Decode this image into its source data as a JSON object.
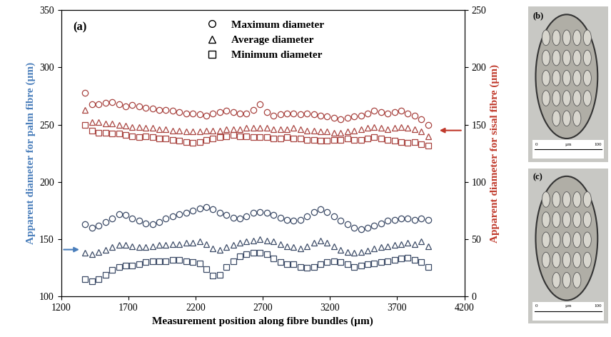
{
  "chart_data": {
    "type": "scatter",
    "panel_label": "(a)",
    "x_label": "Measurement position along fibre bundles (µm)",
    "y_label": "Apparent diameter for palm fibre (µm)",
    "y2_label": "Apparent diameter for sisal fibre (µm)",
    "xlim": [
      1200,
      4200
    ],
    "xticks": [
      1200,
      1700,
      2200,
      2700,
      3200,
      3700,
      4200
    ],
    "ylim": [
      100,
      350
    ],
    "yticks": [
      100,
      150,
      200,
      250,
      300,
      350
    ],
    "y2lim": [
      0,
      250
    ],
    "y2ticks": [
      0,
      50,
      100,
      150,
      200,
      250
    ],
    "legend": "upper center",
    "grid": false,
    "x": [
      1380,
      1430,
      1480,
      1530,
      1580,
      1630,
      1680,
      1730,
      1780,
      1830,
      1880,
      1930,
      1980,
      2030,
      2080,
      2130,
      2180,
      2230,
      2280,
      2330,
      2380,
      2430,
      2480,
      2530,
      2580,
      2630,
      2680,
      2730,
      2780,
      2830,
      2880,
      2930,
      2980,
      3030,
      3080,
      3130,
      3180,
      3230,
      3280,
      3330,
      3380,
      3430,
      3480,
      3530,
      3580,
      3630,
      3680,
      3730,
      3780,
      3830,
      3880,
      3930
    ],
    "series": [
      {
        "name": "Maximum diameter",
        "color": "#3b4a66",
        "marker": "circle",
        "axis": "y",
        "values": [
          163,
          160,
          162,
          165,
          168,
          172,
          171,
          168,
          166,
          164,
          163,
          165,
          168,
          170,
          172,
          173,
          175,
          177,
          178,
          176,
          173,
          171,
          169,
          168,
          170,
          173,
          174,
          173,
          171,
          169,
          167,
          166,
          167,
          170,
          174,
          176,
          174,
          170,
          166,
          163,
          160,
          159,
          160,
          162,
          164,
          166,
          167,
          168,
          168,
          167,
          168,
          167
        ]
      },
      {
        "name": "Average diameter",
        "color": "#3b4a66",
        "marker": "triangle",
        "axis": "y",
        "values": [
          138,
          137,
          139,
          141,
          143,
          145,
          145,
          144,
          143,
          143,
          144,
          145,
          145,
          146,
          146,
          147,
          147,
          148,
          146,
          142,
          141,
          143,
          145,
          147,
          148,
          149,
          150,
          149,
          148,
          146,
          144,
          143,
          142,
          144,
          147,
          149,
          147,
          144,
          141,
          139,
          138,
          139,
          140,
          142,
          143,
          144,
          145,
          146,
          147,
          146,
          148,
          144
        ]
      },
      {
        "name": "Minimum diameter",
        "color": "#3b4a66",
        "marker": "square",
        "axis": "y",
        "values": [
          115,
          113,
          115,
          119,
          123,
          126,
          127,
          127,
          128,
          130,
          131,
          131,
          131,
          132,
          132,
          131,
          130,
          129,
          124,
          118,
          119,
          126,
          131,
          135,
          137,
          138,
          138,
          137,
          133,
          130,
          128,
          128,
          126,
          125,
          126,
          128,
          130,
          131,
          130,
          128,
          126,
          127,
          128,
          129,
          130,
          131,
          132,
          133,
          134,
          132,
          130,
          126
        ]
      },
      {
        "name": "Maximum diameter",
        "color": "#a8433f",
        "marker": "circle",
        "axis": "y2",
        "values": [
          178,
          168,
          168,
          169,
          170,
          168,
          166,
          167,
          166,
          165,
          164,
          163,
          163,
          162,
          161,
          160,
          160,
          159,
          158,
          160,
          161,
          162,
          161,
          160,
          160,
          163,
          168,
          161,
          158,
          159,
          160,
          160,
          159,
          160,
          159,
          158,
          157,
          156,
          155,
          156,
          157,
          158,
          160,
          162,
          161,
          160,
          161,
          162,
          160,
          158,
          155,
          150
        ]
      },
      {
        "name": "Average diameter",
        "color": "#a8433f",
        "marker": "triangle",
        "axis": "y2",
        "values": [
          163,
          152,
          152,
          151,
          151,
          150,
          149,
          148,
          148,
          147,
          147,
          146,
          146,
          145,
          145,
          144,
          144,
          144,
          145,
          145,
          145,
          146,
          146,
          146,
          147,
          147,
          147,
          147,
          146,
          146,
          146,
          147,
          146,
          145,
          145,
          144,
          144,
          143,
          143,
          144,
          145,
          146,
          147,
          148,
          147,
          146,
          147,
          148,
          147,
          146,
          144,
          140
        ]
      },
      {
        "name": "Minimum diameter",
        "color": "#a8433f",
        "marker": "square",
        "axis": "y2",
        "values": [
          150,
          145,
          143,
          143,
          142,
          142,
          141,
          140,
          139,
          140,
          139,
          138,
          138,
          137,
          136,
          135,
          134,
          135,
          137,
          138,
          139,
          140,
          141,
          140,
          140,
          139,
          139,
          139,
          138,
          138,
          139,
          138,
          138,
          137,
          137,
          136,
          136,
          137,
          137,
          138,
          137,
          137,
          138,
          139,
          138,
          137,
          136,
          135,
          134,
          135,
          133,
          132
        ]
      }
    ],
    "y_label_color": "#4a7ebb",
    "y2_label_color": "#c0392b"
  },
  "panels": [
    {
      "label": "(b)",
      "scale_bar": [
        "0",
        "µm",
        "100"
      ]
    },
    {
      "label": "(c)",
      "scale_bar": [
        "0",
        "µm",
        "100"
      ]
    }
  ]
}
